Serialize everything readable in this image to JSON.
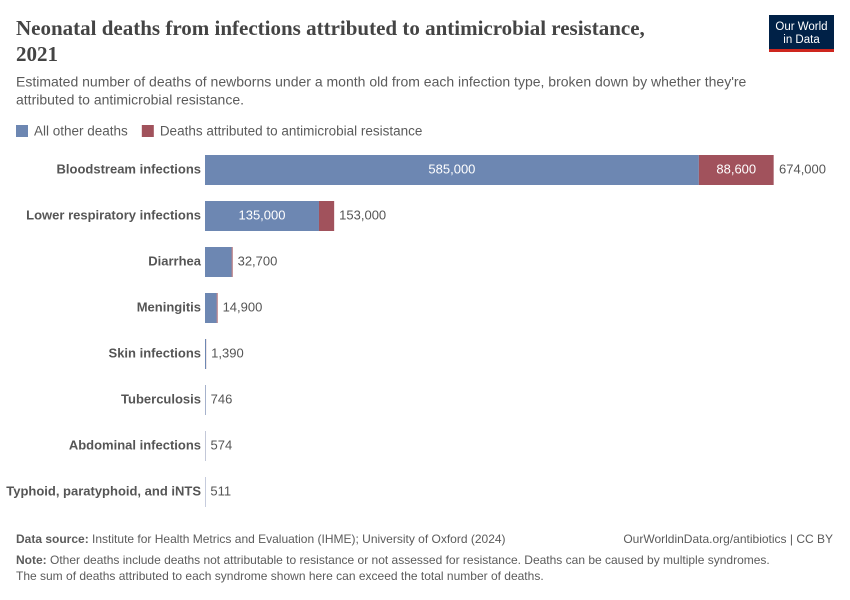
{
  "chart_data": {
    "type": "stacked-bar-horizontal",
    "title": "Neonatal deaths from infections attributed to antimicrobial resistance,",
    "title_line2": "2021",
    "subtitle": "Estimated number of deaths of newborns under a month old from each infection type, broken down by whether they're",
    "subtitle_line2": "attributed to antimicrobial resistance.",
    "logo_line1": "Our World",
    "logo_line2": "in Data",
    "categories": [
      "Bloodstream infections",
      "Lower respiratory infections",
      "Diarrhea",
      "Meningitis",
      "Skin infections",
      "Tuberculosis",
      "Abdominal infections",
      "Typhoid, paratyphoid, and iNTS"
    ],
    "series": [
      {
        "name": "All other deaths",
        "color": "#6d87b2",
        "values": [
          585000,
          135000,
          31600,
          13900,
          1250,
          700,
          500,
          470
        ],
        "value_labels": [
          "585,000",
          "135,000",
          null,
          null,
          null,
          null,
          null,
          null
        ]
      },
      {
        "name": "Deaths attributed to antimicrobial resistance",
        "color": "#a1525c",
        "values": [
          88600,
          18000,
          1100,
          1000,
          140,
          46,
          74,
          41
        ],
        "value_labels": [
          "88,600",
          null,
          null,
          null,
          null,
          null,
          null,
          null
        ]
      }
    ],
    "totals": [
      674000,
      153000,
      32700,
      14900,
      1390,
      746,
      574,
      511
    ],
    "total_labels": [
      "674,000",
      "153,000",
      "32,700",
      "14,900",
      "1,390",
      "746",
      "574",
      "511"
    ],
    "source_label": "Data source:",
    "source": "Institute for Health Metrics and Evaluation (IHME); University of Oxford (2024)",
    "url": "OurWorldinData.org/antibiotics | CC BY",
    "note_label": "Note:",
    "note": "Other deaths include deaths not attributable to resistance or not assessed for resistance. Deaths can be caused by multiple syndromes.",
    "note_line2": "The sum of deaths attributed to each syndrome shown here can exceed the total number of deaths."
  }
}
